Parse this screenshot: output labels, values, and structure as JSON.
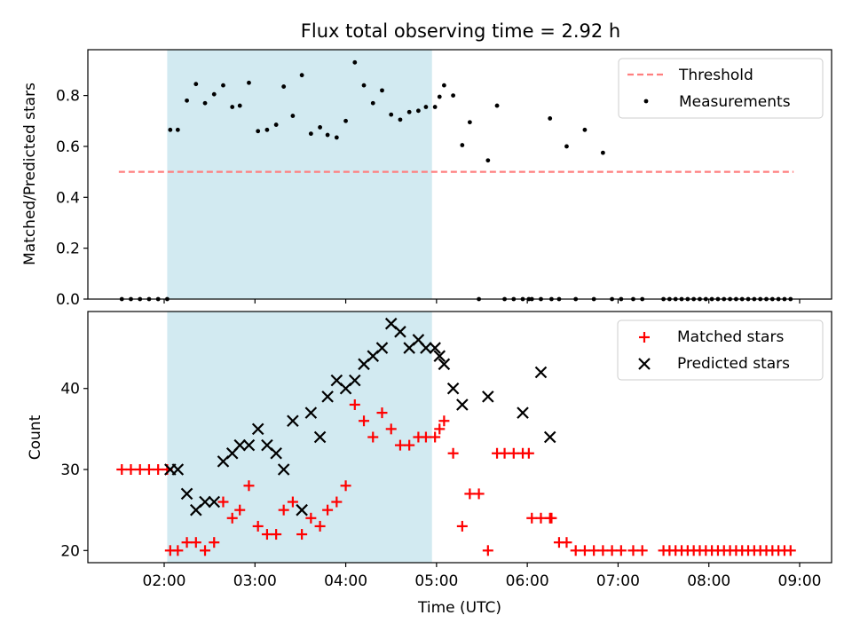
{
  "title": "Flux total observing time = 2.92 h",
  "chart_data": [
    {
      "type": "scatter",
      "title": "Flux total observing time = 2.92 h",
      "xlabel": "",
      "ylabel": "Matched/Predicted stars",
      "ylim": [
        0.0,
        0.98
      ],
      "yticks": [
        "0.0",
        "0.2",
        "0.4",
        "0.6",
        "0.8"
      ],
      "grid": false,
      "legend_position": "top-right",
      "highlight_span": {
        "from": "02:02",
        "to": "04:57",
        "color": "#add8e6"
      },
      "threshold": {
        "name": "Threshold",
        "value": 0.5,
        "x_from": "01:30",
        "x_to": "08:56",
        "color": "#ff7f7f"
      },
      "series": [
        {
          "name": "Measurements",
          "color": "#000000",
          "x": [
            "01:32",
            "01:38",
            "01:44",
            "01:50",
            "01:56",
            "02:02",
            "02:04",
            "02:09",
            "02:15",
            "02:21",
            "02:27",
            "02:33",
            "02:39",
            "02:45",
            "02:50",
            "02:56",
            "03:02",
            "03:08",
            "03:14",
            "03:19",
            "03:25",
            "03:31",
            "03:37",
            "03:43",
            "03:48",
            "03:54",
            "04:00",
            "04:06",
            "04:12",
            "04:18",
            "04:24",
            "04:30",
            "04:36",
            "04:42",
            "04:48",
            "04:53",
            "04:59",
            "05:02",
            "05:05",
            "05:11",
            "05:17",
            "05:22",
            "05:28",
            "05:34",
            "05:40",
            "05:45",
            "05:51",
            "05:57",
            "06:01",
            "06:03",
            "06:09",
            "06:15",
            "06:16",
            "06:21",
            "06:26",
            "06:32",
            "06:38",
            "06:44",
            "06:50",
            "06:56",
            "07:02",
            "07:10",
            "07:16",
            "07:30",
            "07:34",
            "07:38",
            "07:42",
            "07:46",
            "07:50",
            "07:54",
            "07:58",
            "08:02",
            "08:06",
            "08:10",
            "08:14",
            "08:18",
            "08:22",
            "08:26",
            "08:30",
            "08:34",
            "08:38",
            "08:42",
            "08:46",
            "08:50",
            "08:54"
          ],
          "y": [
            0.0,
            0.0,
            0.0,
            0.0,
            0.0,
            0.0,
            0.665,
            0.665,
            0.78,
            0.845,
            0.77,
            0.805,
            0.84,
            0.755,
            0.76,
            0.85,
            0.66,
            0.665,
            0.685,
            0.835,
            0.72,
            0.88,
            0.65,
            0.675,
            0.645,
            0.635,
            0.7,
            0.93,
            0.84,
            0.77,
            0.82,
            0.725,
            0.705,
            0.735,
            0.74,
            0.755,
            0.755,
            0.795,
            0.84,
            0.8,
            0.605,
            0.695,
            0.0,
            0.545,
            0.76,
            0.0,
            0.0,
            0.0,
            0.0,
            0.0,
            0.0,
            0.71,
            0.0,
            0.0,
            0.6,
            0.0,
            0.665,
            0.0,
            0.575,
            0.0,
            0.0,
            0.0,
            0.0,
            0.0,
            0.0,
            0.0,
            0.0,
            0.0,
            0.0,
            0.0,
            0.0,
            0.0,
            0.0,
            0.0,
            0.0,
            0.0,
            0.0,
            0.0,
            0.0,
            0.0,
            0.0,
            0.0,
            0.0,
            0.0,
            0.0
          ]
        }
      ]
    },
    {
      "type": "scatter",
      "xlabel": "Time (UTC)",
      "ylabel": "Count",
      "ylim": [
        18.5,
        49.5
      ],
      "yticks": [
        "20",
        "30",
        "40"
      ],
      "xticks": [
        "02:00",
        "03:00",
        "04:00",
        "05:00",
        "06:00",
        "07:00",
        "08:00",
        "09:00"
      ],
      "grid": false,
      "legend_position": "top-right",
      "highlight_span": {
        "from": "02:02",
        "to": "04:57",
        "color": "#add8e6"
      },
      "series": [
        {
          "name": "Matched stars",
          "color": "#ff0000",
          "marker": "+",
          "x": [
            "01:32",
            "01:38",
            "01:44",
            "01:50",
            "01:56",
            "02:02",
            "02:04",
            "02:09",
            "02:15",
            "02:21",
            "02:27",
            "02:33",
            "02:39",
            "02:45",
            "02:50",
            "02:56",
            "03:02",
            "03:08",
            "03:14",
            "03:19",
            "03:25",
            "03:31",
            "03:37",
            "03:43",
            "03:48",
            "03:54",
            "04:00",
            "04:06",
            "04:12",
            "04:18",
            "04:24",
            "04:30",
            "04:36",
            "04:42",
            "04:48",
            "04:53",
            "04:59",
            "05:02",
            "05:05",
            "05:11",
            "05:17",
            "05:22",
            "05:28",
            "05:34",
            "05:40",
            "05:45",
            "05:51",
            "05:57",
            "06:01",
            "06:03",
            "06:09",
            "06:15",
            "06:16",
            "06:21",
            "06:26",
            "06:32",
            "06:38",
            "06:44",
            "06:50",
            "06:56",
            "07:02",
            "07:10",
            "07:16",
            "07:30",
            "07:34",
            "07:38",
            "07:42",
            "07:46",
            "07:50",
            "07:54",
            "07:58",
            "08:02",
            "08:06",
            "08:10",
            "08:14",
            "08:18",
            "08:22",
            "08:26",
            "08:30",
            "08:34",
            "08:38",
            "08:42",
            "08:46",
            "08:50",
            "08:54"
          ],
          "y": [
            30,
            30,
            30,
            30,
            30,
            30,
            20,
            20,
            21,
            21,
            20,
            21,
            26,
            24,
            25,
            28,
            23,
            22,
            22,
            25,
            26,
            22,
            24,
            23,
            25,
            26,
            28,
            38,
            36,
            34,
            37,
            35,
            33,
            33,
            34,
            34,
            34,
            35,
            36,
            32,
            23,
            27,
            27,
            20,
            32,
            32,
            32,
            32,
            32,
            24,
            24,
            24,
            24,
            21,
            21,
            20,
            20,
            20,
            20,
            20,
            20,
            20,
            20,
            20,
            20,
            20,
            20,
            20,
            20,
            20,
            20,
            20,
            20,
            20,
            20,
            20,
            20,
            20,
            20,
            20,
            20,
            20,
            20,
            20,
            20
          ]
        },
        {
          "name": "Predicted stars",
          "color": "#000000",
          "marker": "x",
          "x": [
            "02:04",
            "02:09",
            "02:15",
            "02:21",
            "02:27",
            "02:33",
            "02:39",
            "02:45",
            "02:50",
            "02:56",
            "03:02",
            "03:08",
            "03:14",
            "03:19",
            "03:25",
            "03:31",
            "03:37",
            "03:43",
            "03:48",
            "03:54",
            "04:00",
            "04:06",
            "04:12",
            "04:18",
            "04:24",
            "04:30",
            "04:36",
            "04:42",
            "04:48",
            "04:53",
            "04:59",
            "05:02",
            "05:05",
            "05:11",
            "05:17",
            "05:34",
            "05:57",
            "06:09",
            "06:15"
          ],
          "y": [
            30,
            30,
            27,
            25,
            26,
            26,
            31,
            32,
            33,
            33,
            35,
            33,
            32,
            30,
            36,
            25,
            37,
            34,
            39,
            41,
            40,
            41,
            43,
            44,
            45,
            48,
            47,
            45,
            46,
            45,
            45,
            44,
            43,
            40,
            38,
            39,
            37,
            42,
            34
          ]
        }
      ]
    }
  ]
}
